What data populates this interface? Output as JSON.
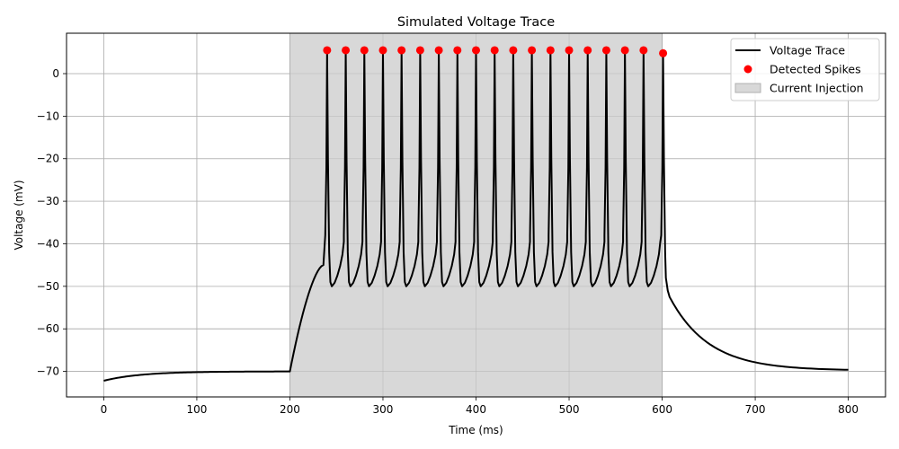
{
  "chart_data": {
    "type": "line",
    "title": "Simulated Voltage Trace",
    "xlabel": "Time (ms)",
    "ylabel": "Voltage (mV)",
    "xlim": [
      -40,
      840
    ],
    "ylim": [
      -76,
      9.5
    ],
    "xticks": [
      0,
      100,
      200,
      300,
      400,
      500,
      600,
      700,
      800
    ],
    "yticks": [
      0,
      -10,
      -20,
      -30,
      -40,
      -50,
      -60,
      -70
    ],
    "grid": true,
    "legend_position": "top-right",
    "colors": {
      "voltage": "#000000",
      "spikes": "#ff0000",
      "injection_fill": "#d8d8d8",
      "injection_edge": "#b0b0b0",
      "grid": "#b0b0b0"
    },
    "current_injection": {
      "start": 200,
      "end": 600
    },
    "series": [
      {
        "name": "Voltage Trace",
        "kind": "line",
        "description_points": {
          "rest_start": [
            0,
            -72.2
          ],
          "rest_plateau": [
            200,
            -70.0
          ],
          "first_spike_time": 240,
          "spike_peak": 5.5,
          "spike_trough": -50.0,
          "last_peak": [
            601,
            4.8
          ],
          "post_drop": [
            608,
            -52.0
          ],
          "end": [
            800,
            -69.7
          ]
        }
      },
      {
        "name": "Detected Spikes",
        "kind": "scatter",
        "x": [
          240,
          260,
          280,
          300,
          320,
          340,
          360,
          380,
          400,
          420,
          440,
          460,
          480,
          500,
          520,
          540,
          560,
          580,
          601
        ],
        "y": [
          5.5,
          5.5,
          5.5,
          5.5,
          5.5,
          5.5,
          5.5,
          5.5,
          5.5,
          5.5,
          5.5,
          5.5,
          5.5,
          5.5,
          5.5,
          5.5,
          5.5,
          5.5,
          4.8
        ]
      }
    ],
    "legend": [
      "Voltage Trace",
      "Detected Spikes",
      "Current Injection"
    ]
  }
}
